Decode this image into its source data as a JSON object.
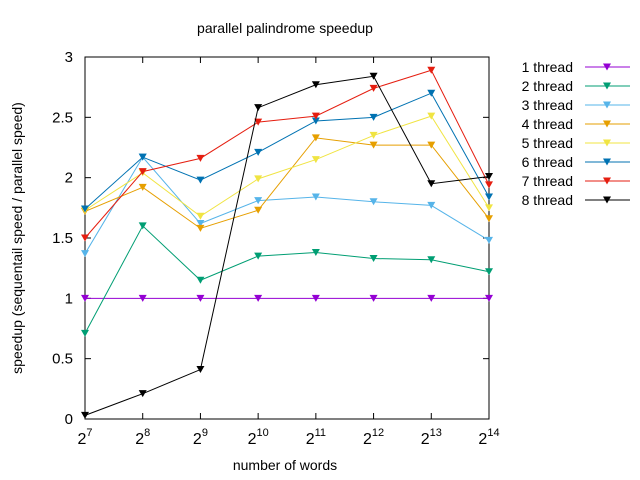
{
  "chart_data": {
    "type": "line",
    "title": "parallel palindrome speedup",
    "xlabel": "number of words",
    "ylabel": "speedup (sequentail speed / parallel speed)",
    "x": [
      7,
      8,
      9,
      10,
      11,
      12,
      13,
      14
    ],
    "x_tick_base": "2",
    "x_ticks": [
      "7",
      "8",
      "9",
      "10",
      "11",
      "12",
      "13",
      "14"
    ],
    "y_ticks": [
      "0",
      "0.5",
      "1",
      "1.5",
      "2",
      "2.5",
      "3"
    ],
    "xlim": [
      7,
      14
    ],
    "ylim": [
      0,
      3
    ],
    "grid": false,
    "legend_position": "outside-right",
    "series": [
      {
        "name": "1 thread",
        "color": "#9400d3",
        "values": [
          1.0,
          1.0,
          1.0,
          1.0,
          1.0,
          1.0,
          1.0,
          1.0
        ]
      },
      {
        "name": "2 thread",
        "color": "#009e73",
        "values": [
          0.71,
          1.6,
          1.15,
          1.35,
          1.38,
          1.33,
          1.32,
          1.22
        ]
      },
      {
        "name": "3 thread",
        "color": "#56b4e9",
        "values": [
          1.37,
          2.17,
          1.62,
          1.81,
          1.84,
          1.8,
          1.77,
          1.48
        ]
      },
      {
        "name": "4 thread",
        "color": "#e69f00",
        "values": [
          1.72,
          1.92,
          1.58,
          1.73,
          2.33,
          2.27,
          2.27,
          1.66
        ]
      },
      {
        "name": "5 thread",
        "color": "#f0e442",
        "values": [
          1.73,
          2.04,
          1.68,
          1.99,
          2.15,
          2.35,
          2.51,
          1.75
        ]
      },
      {
        "name": "6 thread",
        "color": "#0072b2",
        "values": [
          1.74,
          2.17,
          1.98,
          2.21,
          2.47,
          2.5,
          2.7,
          1.84
        ]
      },
      {
        "name": "7 thread",
        "color": "#e51e10",
        "values": [
          1.5,
          2.05,
          2.16,
          2.46,
          2.51,
          2.74,
          2.89,
          1.94
        ]
      },
      {
        "name": "8 thread",
        "color": "#000000",
        "values": [
          0.03,
          0.21,
          0.41,
          2.58,
          2.77,
          2.84,
          1.95,
          2.01
        ]
      }
    ]
  }
}
